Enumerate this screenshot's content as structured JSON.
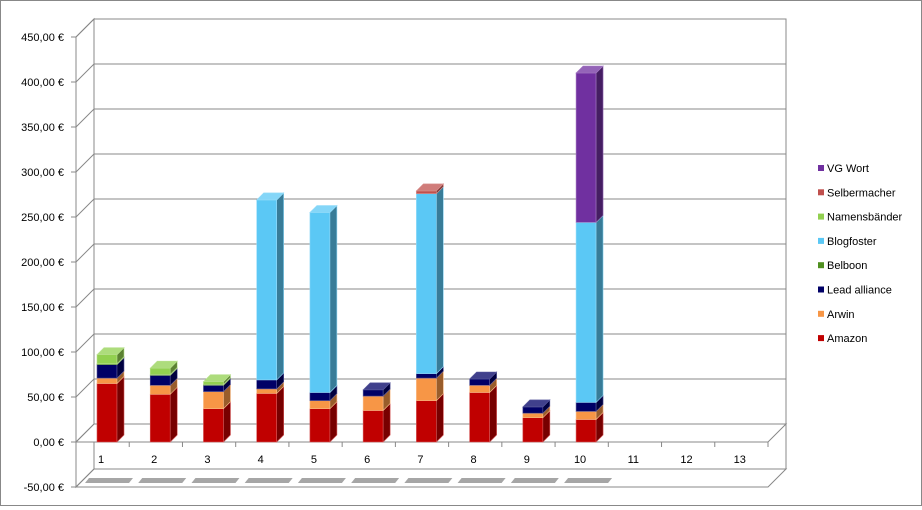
{
  "chart_data": {
    "type": "bar",
    "stacked": true,
    "three_d": true,
    "title": "",
    "xlabel": "",
    "ylabel": "",
    "categories": [
      "1",
      "2",
      "3",
      "4",
      "5",
      "6",
      "7",
      "8",
      "9",
      "10",
      "11",
      "12",
      "13"
    ],
    "ylim": [
      -50,
      450
    ],
    "yticks": [
      -50,
      0,
      50,
      100,
      150,
      200,
      250,
      300,
      350,
      400,
      450
    ],
    "ytick_labels": [
      "-50,00 €",
      "0,00 €",
      "50,00 €",
      "100,00 €",
      "150,00 €",
      "200,00 €",
      "250,00 €",
      "300,00 €",
      "350,00 €",
      "400,00 €",
      "450,00 €"
    ],
    "grid": true,
    "legend_position": "right",
    "series": [
      {
        "name": "Amazon",
        "color": "#C00000",
        "values": [
          65,
          53,
          37,
          54,
          37,
          35,
          46,
          55,
          27,
          25,
          null,
          null,
          null
        ]
      },
      {
        "name": "Arwin",
        "color": "#F79646",
        "values": [
          6,
          10,
          19,
          5,
          9,
          16,
          25,
          8,
          5,
          9,
          null,
          null,
          null
        ]
      },
      {
        "name": "Lead alliance",
        "color": "#000066",
        "values": [
          15,
          11,
          7,
          10,
          9,
          7,
          5,
          7,
          7,
          10,
          null,
          null,
          null
        ]
      },
      {
        "name": "Belboon",
        "color": "#4F8F1F",
        "values": [
          1,
          1,
          1,
          0,
          0,
          0,
          0,
          0,
          0,
          0,
          null,
          null,
          null
        ]
      },
      {
        "name": "Blogfoster",
        "color": "#5BC8F5",
        "values": [
          0,
          0,
          0,
          200,
          200,
          0,
          200,
          0,
          0,
          200,
          null,
          null,
          null
        ]
      },
      {
        "name": "Namensbänder",
        "color": "#92D050",
        "values": [
          10,
          7,
          3,
          0,
          0,
          0,
          0,
          0,
          0,
          0,
          null,
          null,
          null
        ]
      },
      {
        "name": "Selbermacher",
        "color": "#C0504D",
        "values": [
          0,
          0,
          0,
          0,
          0,
          0,
          3,
          0,
          0,
          0,
          null,
          null,
          null
        ]
      },
      {
        "name": "VG Wort",
        "color": "#7030A0",
        "values": [
          0,
          0,
          0,
          0,
          0,
          0,
          0,
          0,
          0,
          166,
          null,
          null,
          null
        ]
      }
    ]
  }
}
